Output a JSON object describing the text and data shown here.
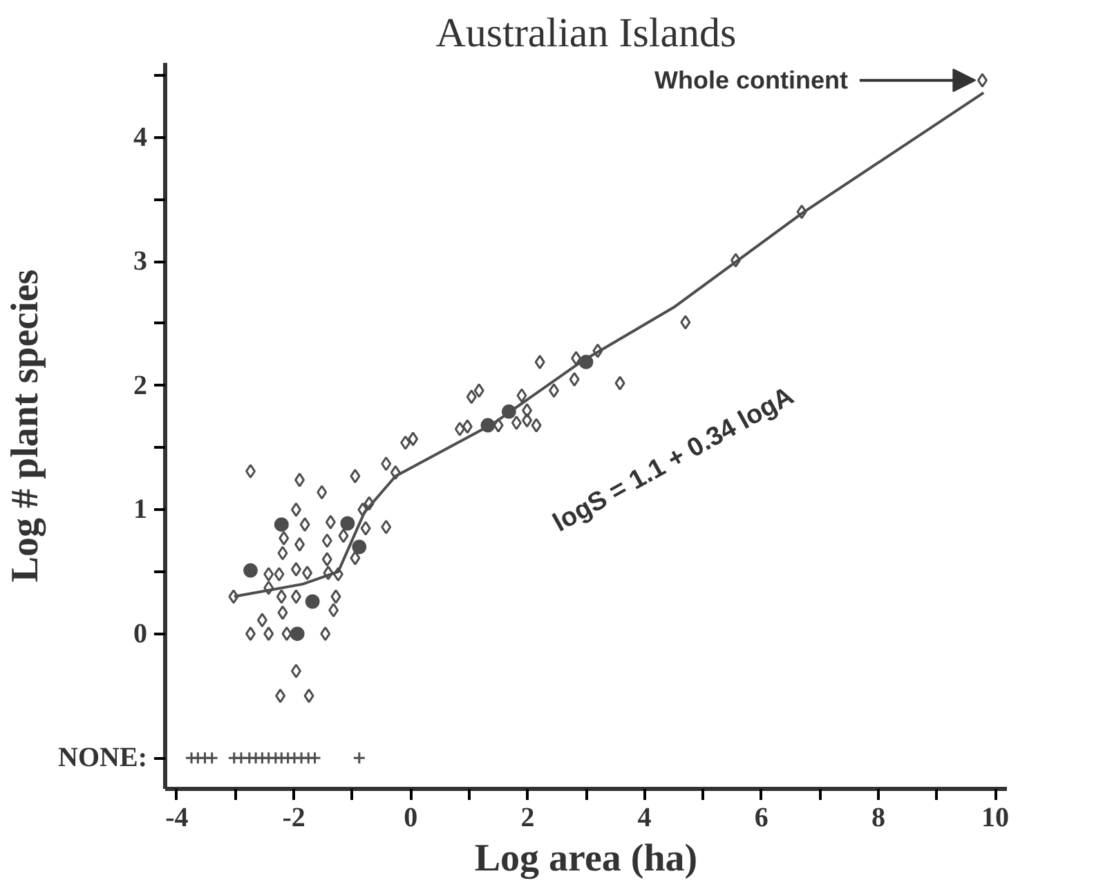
{
  "chart_data": {
    "type": "scatter",
    "title": "Australian Islands",
    "xlabel": "Log area (ha)",
    "ylabel": "Log # plant species",
    "xlim": [
      -4.2,
      10.2
    ],
    "ylim": [
      -1.25,
      4.6
    ],
    "xticks": [
      -4,
      {
        "value": -3,
        "label": null
      },
      -2,
      {
        "value": -1,
        "label": null
      },
      0,
      {
        "value": 1,
        "label": null
      },
      2,
      {
        "value": 3,
        "label": null
      },
      4,
      {
        "value": 5,
        "label": null
      },
      6,
      {
        "value": 7,
        "label": null
      },
      8,
      {
        "value": 9,
        "label": null
      },
      10
    ],
    "yticks": [
      {
        "value": -1,
        "label": "NONE:"
      },
      0,
      {
        "value": 0.5,
        "label": null
      },
      1,
      {
        "value": 1.5,
        "label": null
      },
      2,
      {
        "value": 2.5,
        "label": null
      },
      3,
      {
        "value": 3.5,
        "label": null
      },
      4,
      {
        "value": 4.5,
        "label": null
      }
    ],
    "grid": false,
    "annotations": [
      {
        "text": "Whole continent",
        "x": 9.78,
        "y": 4.46
      },
      "logS = 1.1 + 0.34 logA"
    ],
    "series": [
      {
        "marker": "diamond",
        "color": "#4d4d4d",
        "x": [
          -2.74,
          -1.9,
          -1.52,
          -0.95,
          -0.42,
          -0.26,
          -0.09,
          0.04,
          -1.96,
          -1.81,
          -1.37,
          -0.82,
          -0.71,
          -2.17,
          -2.19,
          -1.9,
          -1.43,
          -1.15,
          -0.77,
          -0.42,
          -1.43,
          -0.95,
          -2.43,
          -2.25,
          -1.96,
          -1.77,
          -1.41,
          -1.24,
          -2.43,
          -2.21,
          -1.96,
          -1.28,
          -2.19,
          -1.32,
          -2.54,
          -2.74,
          -2.43,
          -2.12,
          -1.46,
          -1.96,
          -2.23,
          -1.74,
          -3.03,
          0.84,
          0.97,
          1.04,
          1.17,
          1.5,
          1.9,
          1.99,
          1.81,
          1.99,
          2.15,
          2.21,
          2.45,
          2.8,
          2.83,
          3.2,
          3.58,
          4.7,
          5.56,
          6.69,
          9.78
        ],
        "values": [
          1.31,
          1.24,
          1.14,
          1.27,
          1.37,
          1.3,
          1.54,
          1.57,
          1.0,
          0.88,
          0.9,
          1.0,
          1.05,
          0.77,
          0.65,
          0.72,
          0.75,
          0.79,
          0.85,
          0.86,
          0.6,
          0.61,
          0.48,
          0.48,
          0.52,
          0.49,
          0.49,
          0.48,
          0.37,
          0.3,
          0.3,
          0.3,
          0.17,
          0.19,
          0.11,
          0.0,
          0.0,
          0.0,
          0.0,
          -0.3,
          -0.5,
          -0.5,
          0.3,
          1.65,
          1.67,
          1.91,
          1.96,
          1.68,
          1.92,
          1.8,
          1.7,
          1.72,
          1.68,
          2.19,
          1.96,
          2.05,
          2.22,
          2.28,
          2.02,
          2.51,
          3.01,
          3.4,
          4.46
        ]
      },
      {
        "marker": "circle",
        "color": "#4d4d4d",
        "x": [
          -2.21,
          -1.08,
          -0.88,
          -2.74,
          -1.68,
          -1.94,
          1.32,
          1.68,
          3.0
        ],
        "values": [
          0.88,
          0.89,
          0.7,
          0.51,
          0.26,
          0.0,
          1.68,
          1.79,
          2.19
        ]
      },
      {
        "marker": "cross",
        "color": "#4d4d4d",
        "x": [
          -3.75,
          -3.64,
          -3.52,
          -3.4,
          -3.02,
          -2.9,
          -2.76,
          -2.65,
          -2.54,
          -2.43,
          -2.31,
          -2.21,
          -2.1,
          -1.99,
          -1.87,
          -1.75,
          -1.64,
          -0.88
        ],
        "values": [
          -1,
          -1,
          -1,
          -1,
          -1,
          -1,
          -1,
          -1,
          -1,
          -1,
          -1,
          -1,
          -1,
          -1,
          -1,
          -1,
          -1,
          -1
        ]
      },
      {
        "type": "line",
        "marker": "none",
        "color": "#4d4d4d",
        "x": [
          -3.02,
          -1.85,
          -1.24,
          -0.79,
          -0.26,
          1.4,
          2.91,
          4.5,
          6.7,
          9.8
        ],
        "values": [
          0.3,
          0.4,
          0.5,
          0.98,
          1.27,
          1.69,
          2.19,
          2.63,
          3.39,
          4.36
        ]
      }
    ]
  }
}
